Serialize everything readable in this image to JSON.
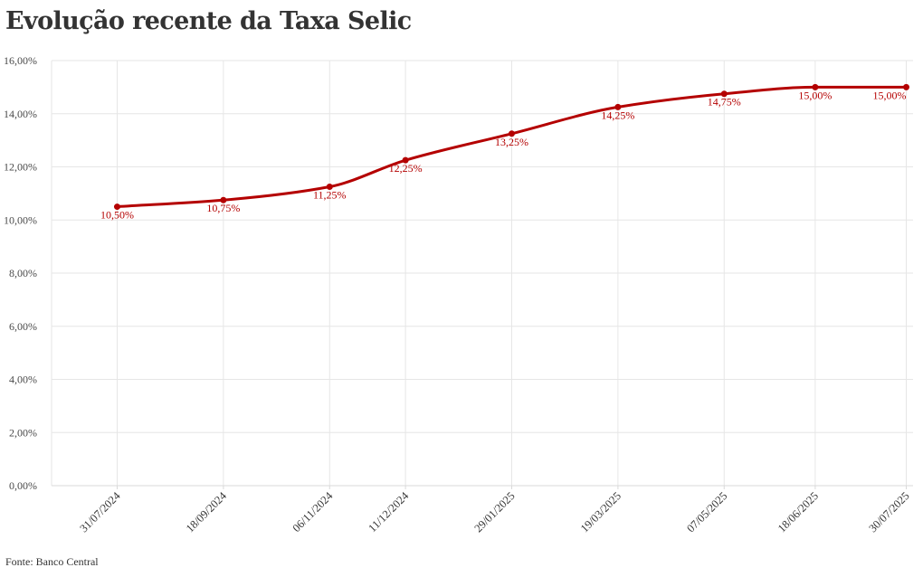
{
  "title": "Evolução recente da Taxa Selic",
  "source": "Fonte: Banco Central",
  "colors": {
    "series": "#b40000",
    "grid": "#e6e6e6",
    "text": "#333333"
  },
  "chart_data": {
    "type": "line",
    "title": "Evolução recente da Taxa Selic",
    "xlabel": "",
    "ylabel": "",
    "x": [
      "31/07/2024",
      "18/09/2024",
      "06/11/2024",
      "11/12/2024",
      "29/01/2025",
      "19/03/2025",
      "07/05/2025",
      "18/06/2025",
      "30/07/2025"
    ],
    "x_days": [
      0,
      49,
      98,
      133,
      182,
      231,
      280,
      322,
      364
    ],
    "series": [
      {
        "name": "Taxa Selic",
        "values": [
          10.5,
          10.75,
          11.25,
          12.25,
          13.25,
          14.25,
          14.75,
          15.0,
          15.0
        ],
        "labels": [
          "10,50%",
          "10,75%",
          "11,25%",
          "12,25%",
          "13,25%",
          "14,25%",
          "14,75%",
          "15,00%",
          "15,00%"
        ]
      }
    ],
    "ylim": [
      0,
      16
    ],
    "yticks": [
      0,
      2,
      4,
      6,
      8,
      10,
      12,
      14,
      16
    ],
    "ytick_labels": [
      "0,00%",
      "2,00%",
      "4,00%",
      "6,00%",
      "8,00%",
      "10,00%",
      "12,00%",
      "14,00%",
      "16,00%"
    ],
    "grid": true,
    "legend": "none"
  }
}
